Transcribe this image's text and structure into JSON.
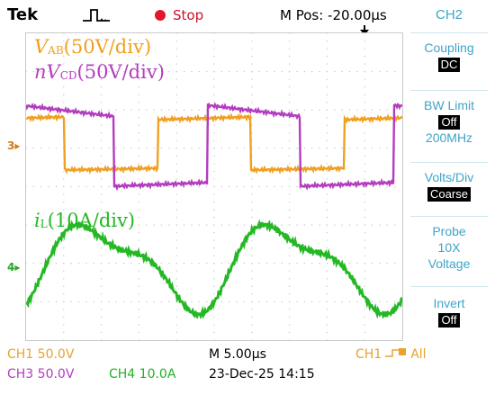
{
  "top": {
    "brand": "Tek",
    "trigger_icon": "trigger-waveform-icon",
    "run_state": "Stop",
    "position": "M Pos: -20.00µs"
  },
  "annotations": {
    "vab_sym": "V",
    "vab_sub": "AB",
    "vab_scale": "(50V/div)",
    "vcd_sym": "nV",
    "vcd_sub": "CD",
    "vcd_scale": "(50V/div)",
    "il_sym": "i",
    "il_sub": "L",
    "il_scale": "(10A/div)"
  },
  "markers": {
    "ch3": "3",
    "ch4": "4"
  },
  "bottom": {
    "ch1": "CH1  50.0V",
    "ch3": "CH3  50.0V",
    "ch4": "CH4  10.0A",
    "timebase": "M 5.00µs",
    "datetime": "23-Dec-25 14:15",
    "trigger_source": "CH1",
    "trigger_mode": "All"
  },
  "menu": {
    "title": "CH2",
    "items": [
      {
        "label": "Coupling",
        "value": "DC"
      },
      {
        "label": "BW Limit",
        "value": "Off",
        "extra": "200MHz"
      },
      {
        "label": "Volts/Div",
        "value": "Coarse"
      },
      {
        "label": "Probe",
        "line2": "10X",
        "line3": "Voltage"
      },
      {
        "label": "Invert",
        "value": "Off"
      }
    ]
  },
  "colors": {
    "vab": "#f0a020",
    "vcd": "#b43cc0",
    "il": "#24b824",
    "menu_text": "#3fa3c8",
    "stop": "#e0182e"
  }
}
